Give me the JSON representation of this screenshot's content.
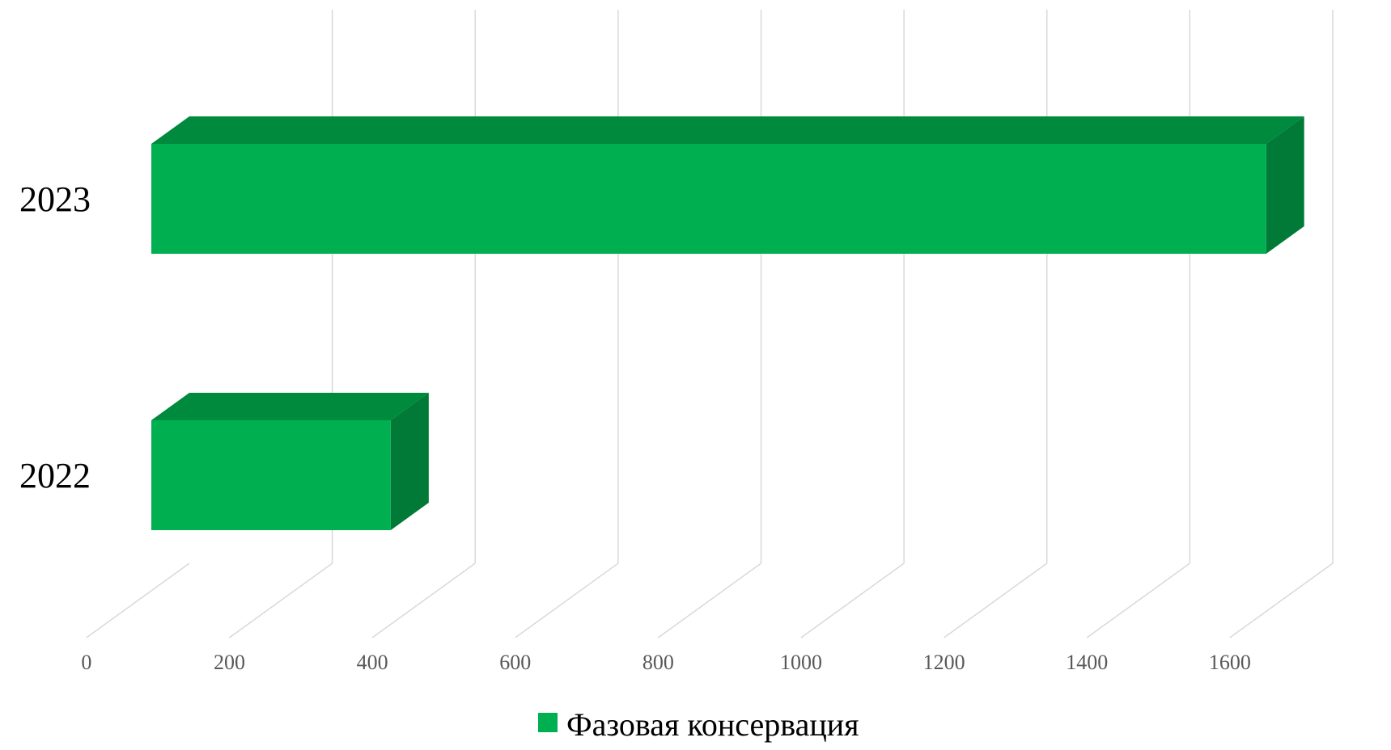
{
  "chart_data": {
    "type": "bar",
    "orientation": "horizontal",
    "style": "3d",
    "categories": [
      "2023",
      "2022"
    ],
    "series": [
      {
        "name": "Фазовая консервация",
        "values": [
          1560,
          335
        ],
        "color": "#00B050"
      }
    ],
    "xlim": [
      0,
      1600
    ],
    "xticks": [
      0,
      200,
      400,
      600,
      800,
      1000,
      1200,
      1400,
      1600
    ],
    "grid": true,
    "legend": "bottom",
    "title": "",
    "xlabel": "",
    "ylabel": ""
  },
  "colors": {
    "bar_front": "#00B050",
    "bar_top": "#008A3E",
    "bar_side": "#007A36",
    "grid": "#D9D9D9",
    "tick_text": "#595959",
    "label_text": "#000000"
  }
}
